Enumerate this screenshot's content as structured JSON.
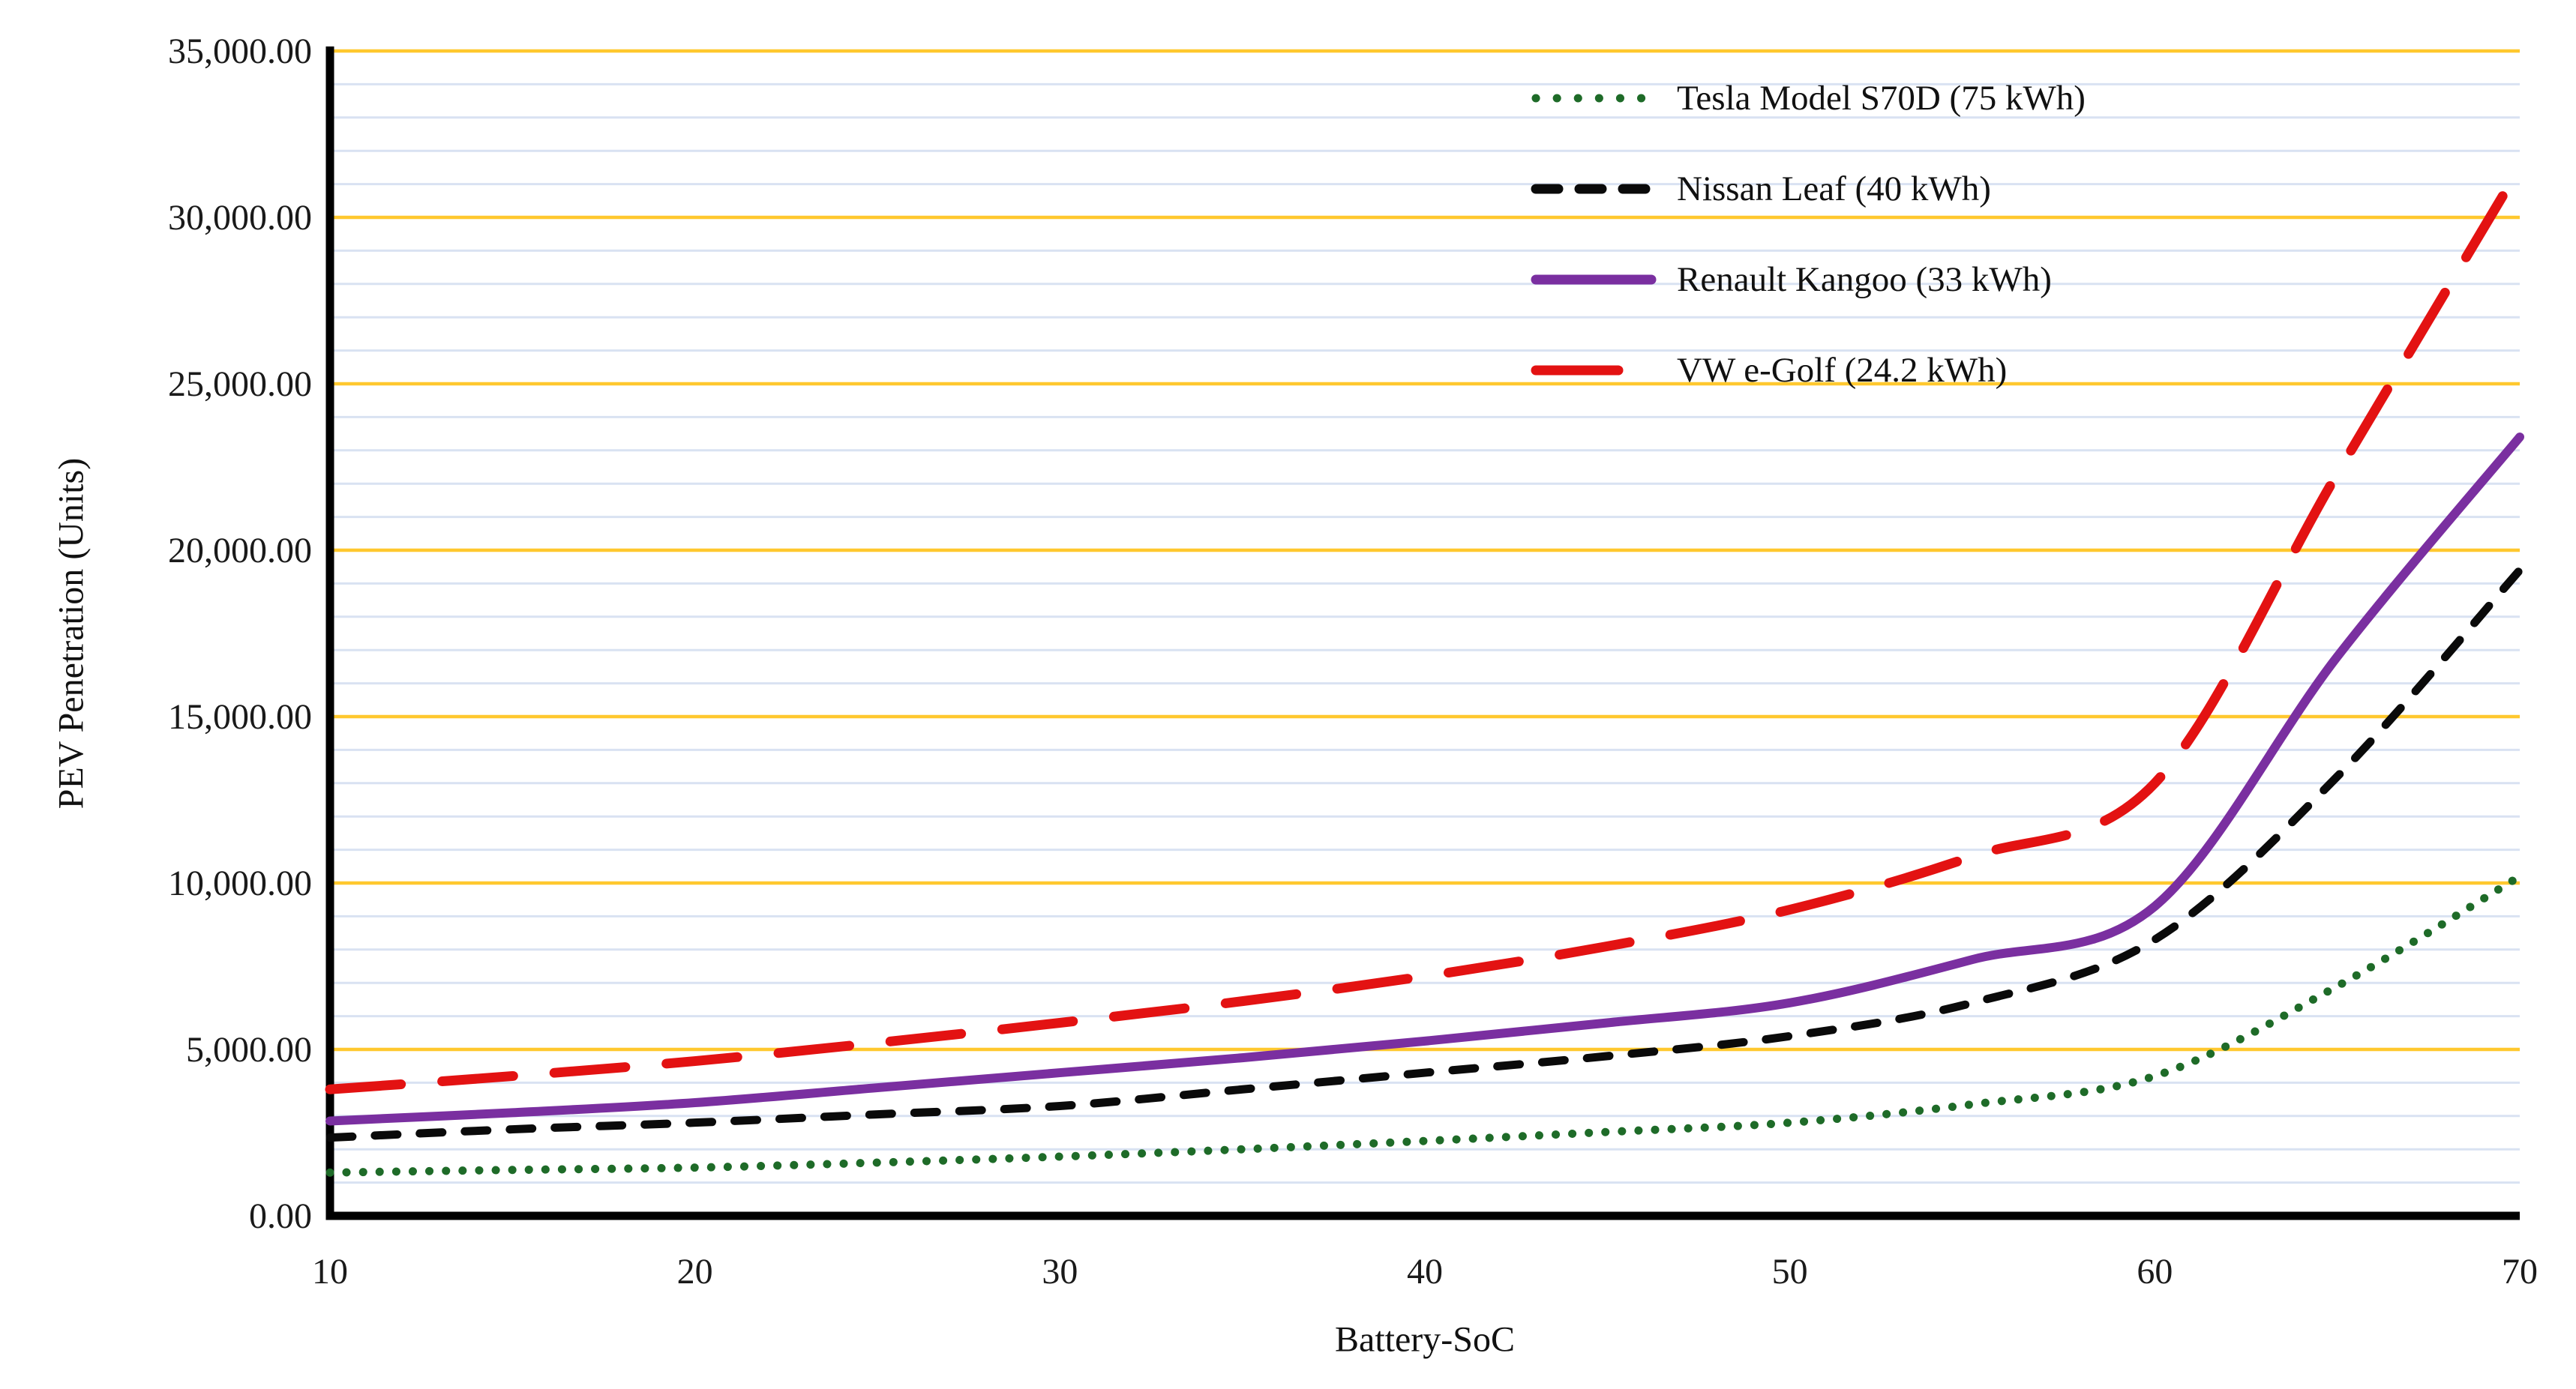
{
  "chart_data": {
    "type": "line",
    "title": "",
    "xlabel": "Battery-SoC",
    "ylabel": "PEV Penetration (Units)",
    "x": [
      10,
      15,
      20,
      25,
      30,
      35,
      40,
      45,
      50,
      55,
      60,
      65,
      70
    ],
    "xticks": [
      10,
      20,
      30,
      40,
      50,
      60,
      70
    ],
    "xlim": [
      10,
      70
    ],
    "ylim": [
      0,
      35000
    ],
    "ytick_step": 5000,
    "y_minor_step": 1000,
    "ytick_labels": [
      "0.00",
      "5,000.00",
      "10,000.00",
      "15,000.00",
      "20,000.00",
      "25,000.00",
      "30,000.00",
      "35,000.00"
    ],
    "grid": {
      "major_color": "#FFC82E",
      "minor_color": "#D9E2F2",
      "axis_color": "#000000",
      "major_on": true,
      "minor_on": true
    },
    "legend_position": "top-right-inside",
    "series": [
      {
        "name": "Tesla Model S70D (75 kWh)",
        "color": "#1E6B28",
        "style": "dotted",
        "values": [
          1300,
          1380,
          1450,
          1600,
          1780,
          2000,
          2250,
          2520,
          2800,
          3350,
          4200,
          6900,
          10200
        ]
      },
      {
        "name": "Nissan Leaf (40 kWh)",
        "color": "#0A0A0A",
        "style": "dashed",
        "values": [
          2350,
          2600,
          2800,
          3050,
          3300,
          3800,
          4300,
          4800,
          5400,
          6400,
          8300,
          13200,
          19400
        ]
      },
      {
        "name": "Renault Kangoo (33 kWh)",
        "color": "#7A2FA0",
        "style": "solid",
        "values": [
          2850,
          3100,
          3400,
          3850,
          4300,
          4750,
          5250,
          5800,
          6400,
          7700,
          9300,
          16800,
          23400
        ]
      },
      {
        "name": "VW e-Golf (24.2 kWh)",
        "color": "#E31212",
        "style": "long-dash",
        "values": [
          3800,
          4200,
          4650,
          5200,
          5800,
          6450,
          7200,
          8100,
          9200,
          10800,
          13000,
          22300,
          31500
        ]
      }
    ]
  }
}
